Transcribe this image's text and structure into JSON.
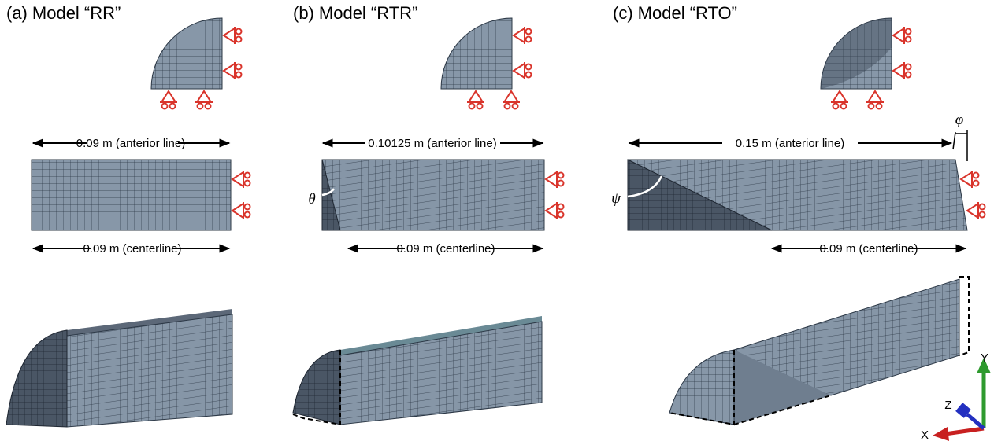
{
  "panels": [
    {
      "label": "(a)",
      "title": "Model “RR”",
      "anterior": "0.09 m (anterior line)",
      "centerline": "0.09 m (centerline)"
    },
    {
      "label": "(b)",
      "title": "Model “RTR”",
      "anterior": "0.10125 m (anterior line)",
      "centerline": "0.09 m (centerline)",
      "angle": "θ"
    },
    {
      "label": "(c)",
      "title": "Model “RTO”",
      "anterior": "0.15 m (anterior line)",
      "centerline": "0.09 m (centerline)",
      "angle": "ψ",
      "offset_angle": "φ"
    }
  ],
  "axes": {
    "x": "X",
    "y": "Y",
    "z": "Z"
  }
}
